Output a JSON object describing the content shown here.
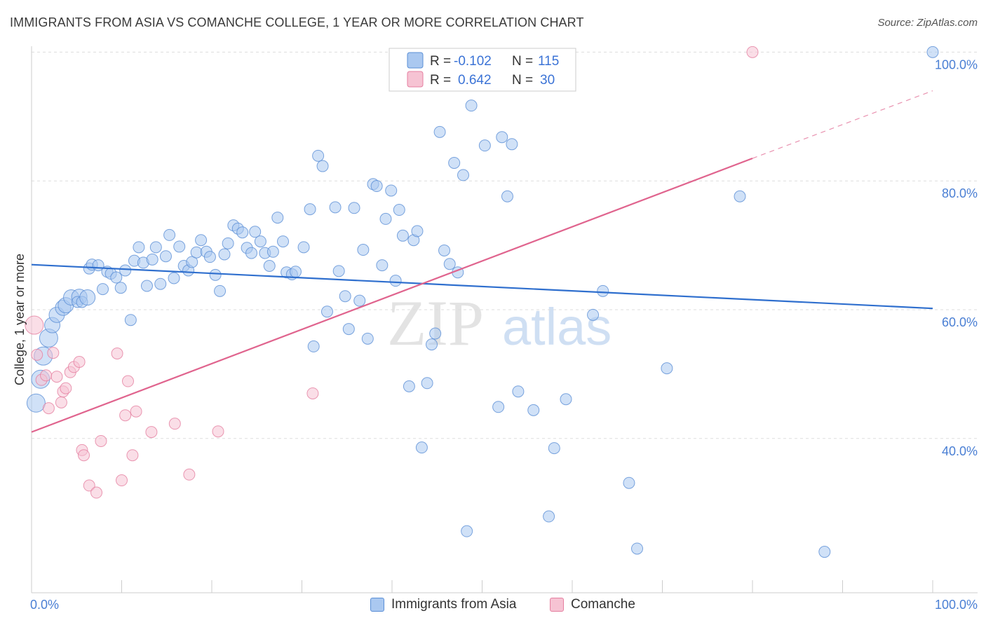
{
  "title": "IMMIGRANTS FROM ASIA VS COMANCHE COLLEGE, 1 YEAR OR MORE CORRELATION CHART",
  "source": "Source: ZipAtlas.com",
  "watermark": {
    "zip": "ZIP",
    "atlas": "atlas"
  },
  "legend_box": {
    "rows": [
      {
        "r_label": "R =",
        "r_value": "-0.102",
        "n_label": "N =",
        "n_value": "115"
      },
      {
        "r_label": "R =",
        "r_value": "0.642",
        "n_label": "N =",
        "n_value": "30"
      }
    ]
  },
  "bottom_legend": [
    "Immigrants from Asia",
    "Comanche"
  ],
  "colors": {
    "blue_fill": "#aac8f0",
    "blue_stroke": "#5b8fd6",
    "blue_line": "#2f6fce",
    "pink_fill": "#f6c3d3",
    "pink_stroke": "#e57fa0",
    "pink_line": "#e0648e",
    "tick_text": "#4a7fd4",
    "grid": "#dddddd"
  },
  "chart_data": {
    "type": "scatter",
    "title": "IMMIGRANTS FROM ASIA VS COMANCHE COLLEGE, 1 YEAR OR MORE CORRELATION CHART",
    "xlabel": "",
    "ylabel": "College, 1 year or more",
    "xlim": [
      0,
      100
    ],
    "ylim": [
      18,
      102
    ],
    "x_tick_labels": [
      "0.0%",
      "100.0%"
    ],
    "y_tick_labels": [
      "40.0%",
      "60.0%",
      "80.0%",
      "100.0%"
    ],
    "y_tick_values": [
      40,
      60,
      80,
      100
    ],
    "grid": true,
    "series": [
      {
        "name": "Immigrants from Asia",
        "color": "#aac8f0",
        "R": -0.102,
        "N": 115,
        "trend": {
          "x": [
            0,
            100
          ],
          "y": [
            67.0,
            60.2
          ],
          "style": "solid"
        },
        "points": [
          {
            "x": 0.5,
            "y": 45.5,
            "s": 3
          },
          {
            "x": 1.0,
            "y": 49.2,
            "s": 3
          },
          {
            "x": 1.3,
            "y": 52.8,
            "s": 3
          },
          {
            "x": 1.9,
            "y": 55.6,
            "s": 3
          },
          {
            "x": 2.3,
            "y": 57.6,
            "s": 2
          },
          {
            "x": 2.8,
            "y": 59.2,
            "s": 2
          },
          {
            "x": 3.5,
            "y": 60.3,
            "s": 2
          },
          {
            "x": 3.8,
            "y": 60.7,
            "s": 2
          },
          {
            "x": 4.4,
            "y": 61.9,
            "s": 2
          },
          {
            "x": 5.3,
            "y": 62.0,
            "s": 2
          },
          {
            "x": 5.1,
            "y": 61.2,
            "s": 1
          },
          {
            "x": 5.6,
            "y": 61.2,
            "s": 1
          },
          {
            "x": 6.2,
            "y": 61.9,
            "s": 2
          },
          {
            "x": 6.4,
            "y": 66.4,
            "s": 1
          },
          {
            "x": 6.7,
            "y": 67.0,
            "s": 1
          },
          {
            "x": 7.4,
            "y": 66.9,
            "s": 1
          },
          {
            "x": 7.9,
            "y": 63.2,
            "s": 1
          },
          {
            "x": 8.4,
            "y": 65.9,
            "s": 1
          },
          {
            "x": 8.8,
            "y": 65.6,
            "s": 1
          },
          {
            "x": 9.4,
            "y": 65.0,
            "s": 1
          },
          {
            "x": 9.9,
            "y": 63.4,
            "s": 1
          },
          {
            "x": 10.4,
            "y": 66.1,
            "s": 1
          },
          {
            "x": 11.0,
            "y": 58.4,
            "s": 1
          },
          {
            "x": 11.4,
            "y": 67.6,
            "s": 1
          },
          {
            "x": 11.9,
            "y": 69.7,
            "s": 1
          },
          {
            "x": 12.4,
            "y": 67.3,
            "s": 1
          },
          {
            "x": 12.8,
            "y": 63.7,
            "s": 1
          },
          {
            "x": 13.4,
            "y": 67.8,
            "s": 1
          },
          {
            "x": 13.8,
            "y": 69.7,
            "s": 1
          },
          {
            "x": 14.3,
            "y": 64.0,
            "s": 1
          },
          {
            "x": 14.9,
            "y": 68.3,
            "s": 1
          },
          {
            "x": 15.3,
            "y": 71.6,
            "s": 1
          },
          {
            "x": 15.8,
            "y": 64.9,
            "s": 1
          },
          {
            "x": 16.4,
            "y": 69.8,
            "s": 1
          },
          {
            "x": 16.9,
            "y": 66.8,
            "s": 1
          },
          {
            "x": 17.4,
            "y": 66.1,
            "s": 1
          },
          {
            "x": 17.8,
            "y": 67.4,
            "s": 1
          },
          {
            "x": 18.3,
            "y": 68.9,
            "s": 1
          },
          {
            "x": 18.8,
            "y": 70.8,
            "s": 1
          },
          {
            "x": 19.4,
            "y": 69.0,
            "s": 1
          },
          {
            "x": 19.8,
            "y": 68.2,
            "s": 1
          },
          {
            "x": 20.4,
            "y": 65.4,
            "s": 1
          },
          {
            "x": 20.9,
            "y": 62.9,
            "s": 1
          },
          {
            "x": 21.4,
            "y": 68.6,
            "s": 1
          },
          {
            "x": 21.8,
            "y": 70.3,
            "s": 1
          },
          {
            "x": 22.4,
            "y": 73.1,
            "s": 1
          },
          {
            "x": 22.9,
            "y": 72.6,
            "s": 1
          },
          {
            "x": 23.4,
            "y": 72.0,
            "s": 1
          },
          {
            "x": 23.9,
            "y": 69.6,
            "s": 1
          },
          {
            "x": 24.4,
            "y": 68.8,
            "s": 1
          },
          {
            "x": 24.8,
            "y": 72.1,
            "s": 1
          },
          {
            "x": 25.4,
            "y": 70.6,
            "s": 1
          },
          {
            "x": 25.9,
            "y": 68.8,
            "s": 1
          },
          {
            "x": 26.4,
            "y": 66.8,
            "s": 1
          },
          {
            "x": 26.8,
            "y": 69.0,
            "s": 1
          },
          {
            "x": 27.3,
            "y": 74.3,
            "s": 1
          },
          {
            "x": 27.9,
            "y": 70.6,
            "s": 1
          },
          {
            "x": 28.3,
            "y": 65.8,
            "s": 1
          },
          {
            "x": 28.9,
            "y": 65.5,
            "s": 1
          },
          {
            "x": 29.3,
            "y": 65.9,
            "s": 1
          },
          {
            "x": 30.2,
            "y": 69.7,
            "s": 1
          },
          {
            "x": 30.9,
            "y": 75.6,
            "s": 1
          },
          {
            "x": 31.3,
            "y": 54.3,
            "s": 1
          },
          {
            "x": 31.8,
            "y": 83.9,
            "s": 1
          },
          {
            "x": 32.3,
            "y": 82.3,
            "s": 1
          },
          {
            "x": 32.8,
            "y": 59.7,
            "s": 1
          },
          {
            "x": 33.7,
            "y": 75.9,
            "s": 1
          },
          {
            "x": 34.1,
            "y": 66.0,
            "s": 1
          },
          {
            "x": 34.8,
            "y": 62.1,
            "s": 1
          },
          {
            "x": 35.2,
            "y": 57.0,
            "s": 1
          },
          {
            "x": 35.8,
            "y": 75.8,
            "s": 1
          },
          {
            "x": 36.4,
            "y": 61.4,
            "s": 1
          },
          {
            "x": 36.8,
            "y": 69.3,
            "s": 1
          },
          {
            "x": 37.3,
            "y": 55.5,
            "s": 1
          },
          {
            "x": 37.9,
            "y": 79.5,
            "s": 1
          },
          {
            "x": 38.3,
            "y": 79.2,
            "s": 1
          },
          {
            "x": 38.9,
            "y": 66.9,
            "s": 1
          },
          {
            "x": 39.3,
            "y": 74.1,
            "s": 1
          },
          {
            "x": 39.9,
            "y": 78.5,
            "s": 1
          },
          {
            "x": 40.4,
            "y": 64.5,
            "s": 1
          },
          {
            "x": 40.8,
            "y": 75.5,
            "s": 1
          },
          {
            "x": 41.2,
            "y": 71.5,
            "s": 1
          },
          {
            "x": 41.9,
            "y": 48.1,
            "s": 1
          },
          {
            "x": 42.4,
            "y": 70.8,
            "s": 1
          },
          {
            "x": 42.8,
            "y": 72.2,
            "s": 1
          },
          {
            "x": 43.3,
            "y": 38.6,
            "s": 1
          },
          {
            "x": 43.9,
            "y": 48.6,
            "s": 1
          },
          {
            "x": 44.4,
            "y": 54.6,
            "s": 1
          },
          {
            "x": 44.8,
            "y": 56.3,
            "s": 1
          },
          {
            "x": 45.3,
            "y": 87.6,
            "s": 1
          },
          {
            "x": 45.8,
            "y": 69.2,
            "s": 1
          },
          {
            "x": 46.4,
            "y": 67.1,
            "s": 1
          },
          {
            "x": 46.9,
            "y": 82.8,
            "s": 1
          },
          {
            "x": 47.3,
            "y": 65.8,
            "s": 1
          },
          {
            "x": 47.9,
            "y": 80.9,
            "s": 1
          },
          {
            "x": 48.3,
            "y": 25.6,
            "s": 1
          },
          {
            "x": 48.8,
            "y": 91.7,
            "s": 1
          },
          {
            "x": 50.3,
            "y": 85.5,
            "s": 1
          },
          {
            "x": 51.8,
            "y": 44.9,
            "s": 1
          },
          {
            "x": 52.2,
            "y": 86.8,
            "s": 1
          },
          {
            "x": 52.8,
            "y": 77.6,
            "s": 1
          },
          {
            "x": 53.3,
            "y": 85.7,
            "s": 1
          },
          {
            "x": 54.0,
            "y": 47.3,
            "s": 1
          },
          {
            "x": 55.7,
            "y": 44.4,
            "s": 1
          },
          {
            "x": 57.4,
            "y": 27.9,
            "s": 1
          },
          {
            "x": 58.0,
            "y": 38.5,
            "s": 1
          },
          {
            "x": 59.3,
            "y": 46.1,
            "s": 1
          },
          {
            "x": 62.3,
            "y": 59.2,
            "s": 1
          },
          {
            "x": 63.4,
            "y": 62.9,
            "s": 1
          },
          {
            "x": 66.3,
            "y": 33.1,
            "s": 1
          },
          {
            "x": 67.2,
            "y": 22.9,
            "s": 1
          },
          {
            "x": 70.5,
            "y": 50.9,
            "s": 1
          },
          {
            "x": 78.6,
            "y": 77.6,
            "s": 1
          },
          {
            "x": 88.0,
            "y": 22.4,
            "s": 1
          },
          {
            "x": 100.0,
            "y": 100.0,
            "s": 1
          }
        ]
      },
      {
        "name": "Comanche",
        "color": "#f6c3d3",
        "R": 0.642,
        "N": 30,
        "trend": {
          "x": [
            0,
            80
          ],
          "y": [
            41.0,
            83.5
          ],
          "dashed_to": {
            "x": 100,
            "y": 94.0
          },
          "style": "solid"
        },
        "points": [
          {
            "x": 0.3,
            "y": 57.6,
            "s": 3
          },
          {
            "x": 0.6,
            "y": 53.0,
            "s": 1
          },
          {
            "x": 1.1,
            "y": 49.1,
            "s": 1
          },
          {
            "x": 1.6,
            "y": 49.8,
            "s": 1
          },
          {
            "x": 1.9,
            "y": 44.7,
            "s": 1
          },
          {
            "x": 2.4,
            "y": 53.3,
            "s": 1
          },
          {
            "x": 2.8,
            "y": 49.6,
            "s": 1
          },
          {
            "x": 3.3,
            "y": 45.6,
            "s": 1
          },
          {
            "x": 3.5,
            "y": 47.3,
            "s": 1
          },
          {
            "x": 3.8,
            "y": 47.8,
            "s": 1
          },
          {
            "x": 4.3,
            "y": 50.3,
            "s": 1
          },
          {
            "x": 4.7,
            "y": 51.1,
            "s": 1
          },
          {
            "x": 5.3,
            "y": 51.9,
            "s": 1
          },
          {
            "x": 5.6,
            "y": 38.2,
            "s": 1
          },
          {
            "x": 5.8,
            "y": 37.4,
            "s": 1
          },
          {
            "x": 6.4,
            "y": 32.7,
            "s": 1
          },
          {
            "x": 7.2,
            "y": 31.6,
            "s": 1
          },
          {
            "x": 7.7,
            "y": 39.6,
            "s": 1
          },
          {
            "x": 9.5,
            "y": 53.2,
            "s": 1
          },
          {
            "x": 10.0,
            "y": 33.5,
            "s": 1
          },
          {
            "x": 10.4,
            "y": 43.6,
            "s": 1
          },
          {
            "x": 10.7,
            "y": 48.9,
            "s": 1
          },
          {
            "x": 11.2,
            "y": 37.4,
            "s": 1
          },
          {
            "x": 11.6,
            "y": 44.2,
            "s": 1
          },
          {
            "x": 13.3,
            "y": 41.0,
            "s": 1
          },
          {
            "x": 15.9,
            "y": 42.3,
            "s": 1
          },
          {
            "x": 17.5,
            "y": 34.4,
            "s": 1
          },
          {
            "x": 20.7,
            "y": 41.1,
            "s": 1
          },
          {
            "x": 31.2,
            "y": 47.0,
            "s": 1
          },
          {
            "x": 80.0,
            "y": 100.0,
            "s": 1
          }
        ]
      }
    ]
  }
}
